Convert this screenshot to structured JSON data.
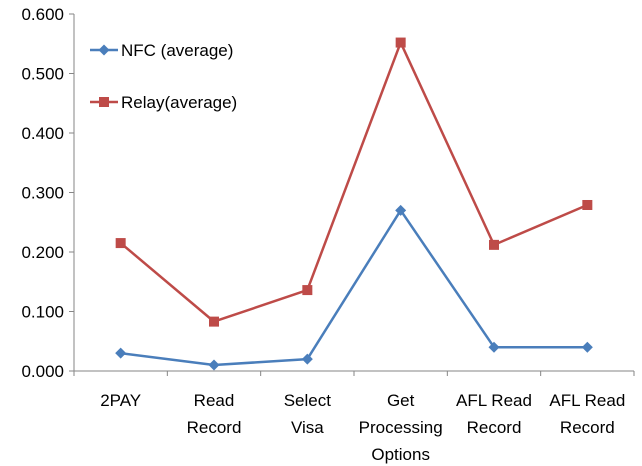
{
  "chart_data": {
    "type": "line",
    "categories": [
      [
        "2PAY"
      ],
      [
        "Read",
        "Record"
      ],
      [
        "Select",
        "Visa"
      ],
      [
        "Get",
        "Processing",
        "Options"
      ],
      [
        "AFL Read",
        "Record"
      ],
      [
        "AFL Read",
        "Record"
      ]
    ],
    "series": [
      {
        "name": "NFC (average)",
        "color": "#4A7EBB",
        "marker": "diamond",
        "values": [
          0.03,
          0.01,
          0.02,
          0.27,
          0.04,
          0.04
        ]
      },
      {
        "name": "Relay(average)",
        "color": "#BE4B48",
        "marker": "square",
        "values": [
          0.215,
          0.083,
          0.136,
          0.552,
          0.212,
          0.279
        ]
      }
    ],
    "y_ticks": [
      "0.000",
      "0.100",
      "0.200",
      "0.300",
      "0.400",
      "0.500",
      "0.600"
    ],
    "ylim": [
      0,
      0.6
    ],
    "legend_placement": "top-left",
    "grid": false
  }
}
